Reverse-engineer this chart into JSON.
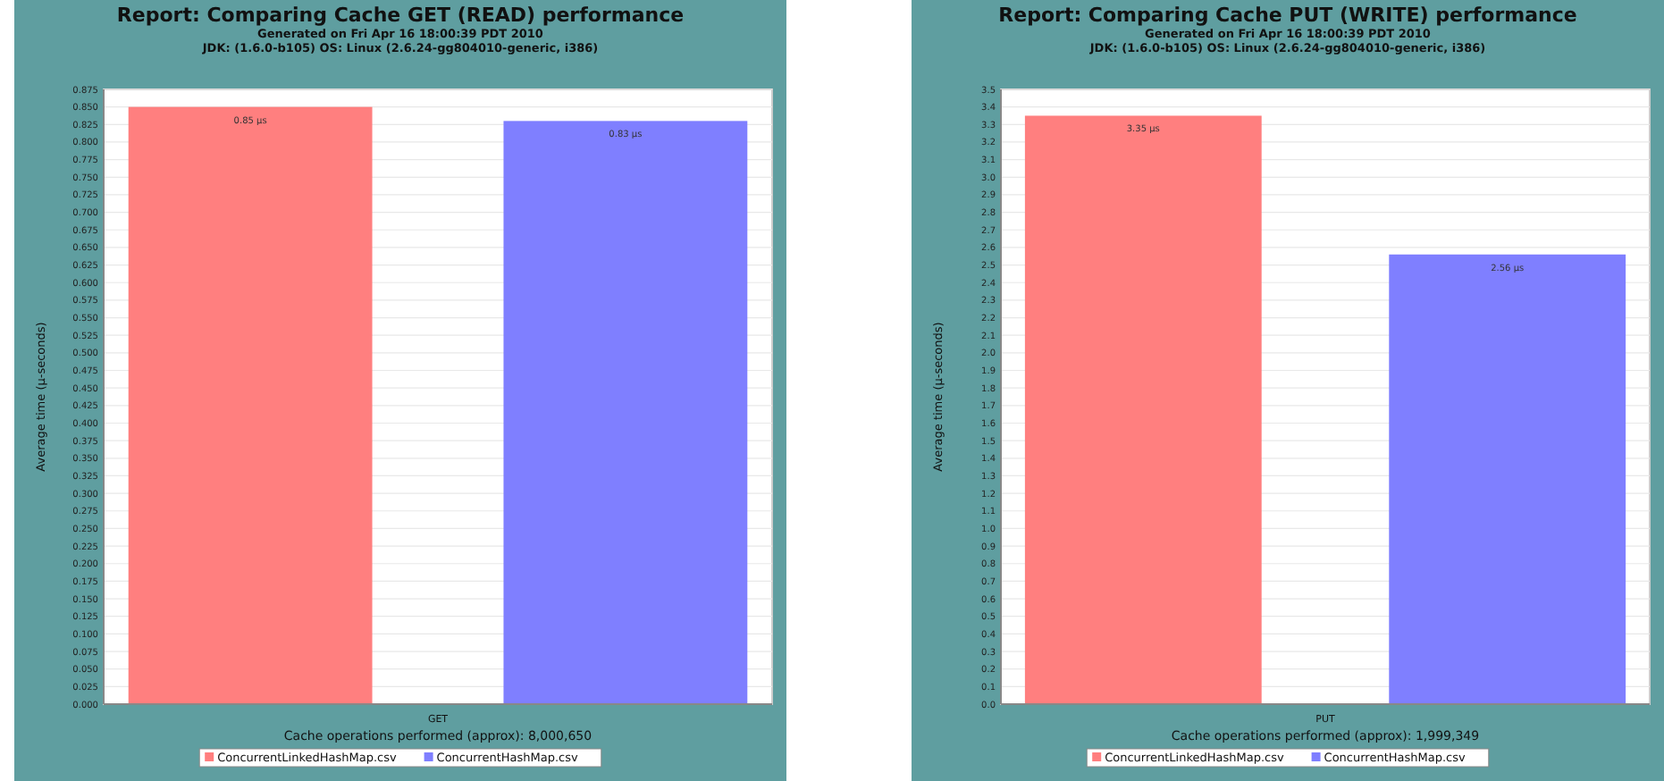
{
  "chart_data": [
    {
      "type": "bar",
      "title": "Report: Comparing Cache GET (READ) performance",
      "subtitle": "Generated on Fri Apr 16 18:00:39 PDT 2010\nJDK: (1.6.0-b105) OS: Linux (2.6.24-gg804010-generic, i386)",
      "xlabel": "Cache operations performed (approx): 8,000,650",
      "ylabel": "Average time (µ-seconds)",
      "categories": [
        "GET"
      ],
      "series": [
        {
          "name": "ConcurrentLinkedHashMap.csv",
          "color": "#ff7f7f",
          "values": [
            0.85
          ],
          "value_labels": [
            "0.85 µs"
          ]
        },
        {
          "name": "ConcurrentHashMap.csv",
          "color": "#7f7fff",
          "values": [
            0.83
          ],
          "value_labels": [
            "0.83 µs"
          ]
        }
      ],
      "ylim": [
        0,
        0.875
      ],
      "yticks": [
        {
          "value": 0,
          "label": "0.000"
        },
        0.025,
        {
          "value": 0.05,
          "label": "0.050"
        },
        0.075,
        {
          "value": 0.1,
          "label": "0.100"
        },
        0.125,
        {
          "value": 0.15,
          "label": "0.150"
        },
        0.175,
        {
          "value": 0.2,
          "label": "0.200"
        },
        0.225,
        {
          "value": 0.25,
          "label": "0.250"
        },
        0.275,
        {
          "value": 0.3,
          "label": "0.300"
        },
        0.325,
        {
          "value": 0.35,
          "label": "0.350"
        },
        0.375,
        {
          "value": 0.4,
          "label": "0.400"
        },
        0.425,
        {
          "value": 0.45,
          "label": "0.450"
        },
        0.475,
        {
          "value": 0.5,
          "label": "0.500"
        },
        0.525,
        {
          "value": 0.55,
          "label": "0.550"
        },
        0.575,
        {
          "value": 0.6,
          "label": "0.600"
        },
        0.625,
        {
          "value": 0.65,
          "label": "0.650"
        },
        0.675,
        {
          "value": 0.7,
          "label": "0.700"
        },
        0.725,
        {
          "value": 0.75,
          "label": "0.750"
        },
        0.775,
        {
          "value": 0.8,
          "label": "0.800"
        },
        0.825,
        {
          "value": 0.85,
          "label": "0.850"
        },
        0.875
      ],
      "grid": "y",
      "legend": "bottom"
    },
    {
      "type": "bar",
      "title": "Report: Comparing Cache PUT (WRITE) performance",
      "subtitle": "Generated on Fri Apr 16 18:00:39 PDT 2010\nJDK: (1.6.0-b105) OS: Linux (2.6.24-gg804010-generic, i386)",
      "xlabel": "Cache operations performed (approx): 1,999,349",
      "ylabel": "Average time (µ-seconds)",
      "categories": [
        "PUT"
      ],
      "series": [
        {
          "name": "ConcurrentLinkedHashMap.csv",
          "color": "#ff7f7f",
          "values": [
            3.35
          ],
          "value_labels": [
            "3.35 µs"
          ]
        },
        {
          "name": "ConcurrentHashMap.csv",
          "color": "#7f7fff",
          "values": [
            2.56
          ],
          "value_labels": [
            "2.56 µs"
          ]
        }
      ],
      "ylim": [
        0,
        3.5
      ],
      "yticks": [
        {
          "value": 0,
          "label": "0.0"
        },
        0.1,
        0.2,
        0.3,
        0.4,
        0.5,
        0.6,
        0.7,
        0.8,
        0.9,
        {
          "value": 1,
          "label": "1.0"
        },
        1.1,
        1.2,
        1.3,
        1.4,
        1.5,
        1.6,
        1.7,
        1.8,
        1.9,
        {
          "value": 2,
          "label": "2.0"
        },
        2.1,
        2.2,
        2.3,
        2.4,
        2.5,
        2.6,
        2.7,
        2.8,
        2.9,
        {
          "value": 3,
          "label": "3.0"
        },
        3.1,
        3.2,
        3.3,
        3.4,
        3.5
      ],
      "grid": "y",
      "legend": "bottom"
    }
  ]
}
